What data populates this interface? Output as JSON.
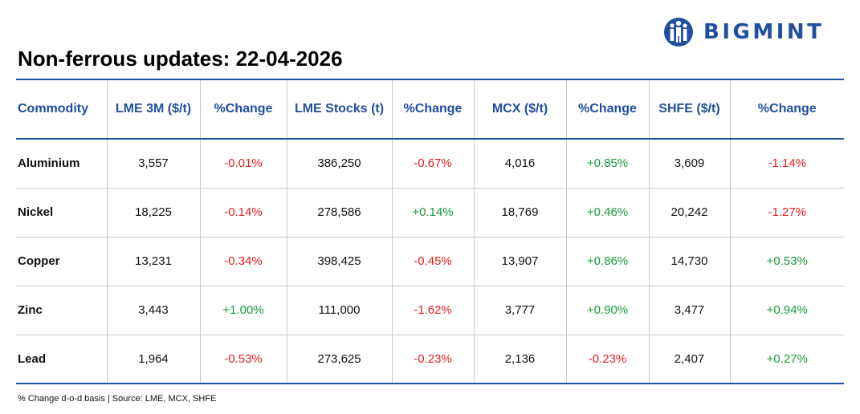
{
  "brand": {
    "name": "BIGMINT",
    "color": "#1f4f9e"
  },
  "title": "Non-ferrous updates: 22-04-2026",
  "colors": {
    "header_text": "#1f4f9e",
    "negative": "#e02020",
    "positive": "#1a9a3a"
  },
  "table": {
    "headers": [
      "Commodity",
      "LME 3M ($/t)",
      "%Change",
      "LME Stocks (t)",
      "%Change",
      "MCX ($/t)",
      "%Change",
      "SHFE ($/t)",
      "%Change"
    ],
    "rows": [
      {
        "commodity": "Aluminium",
        "lme_3m": "3,557",
        "lme_3m_change": "-0.01%",
        "lme_stocks": "386,250",
        "lme_stocks_change": "-0.67%",
        "mcx": "4,016",
        "mcx_change": "+0.85%",
        "shfe": "3,609",
        "shfe_change": "-1.14%"
      },
      {
        "commodity": "Nickel",
        "lme_3m": "18,225",
        "lme_3m_change": "-0.14%",
        "lme_stocks": "278,586",
        "lme_stocks_change": "+0.14%",
        "mcx": "18,769",
        "mcx_change": "+0.46%",
        "shfe": "20,242",
        "shfe_change": "-1.27%"
      },
      {
        "commodity": "Copper",
        "lme_3m": "13,231",
        "lme_3m_change": "-0.34%",
        "lme_stocks": "398,425",
        "lme_stocks_change": "-0.45%",
        "mcx": "13,907",
        "mcx_change": "+0.86%",
        "shfe": "14,730",
        "shfe_change": "+0.53%"
      },
      {
        "commodity": "Zinc",
        "lme_3m": "3,443",
        "lme_3m_change": "+1.00%",
        "lme_stocks": "111,000",
        "lme_stocks_change": "-1.62%",
        "mcx": "3,777",
        "mcx_change": "+0.90%",
        "shfe": "3,477",
        "shfe_change": "+0.94%"
      },
      {
        "commodity": "Lead",
        "lme_3m": "1,964",
        "lme_3m_change": "-0.53%",
        "lme_stocks": "273,625",
        "lme_stocks_change": "-0.23%",
        "mcx": "2,136",
        "mcx_change": "-0.23%",
        "shfe": "2,407",
        "shfe_change": "+0.27%"
      }
    ]
  },
  "footnote": "% Change d-o-d basis | Source: LME, MCX, SHFE"
}
